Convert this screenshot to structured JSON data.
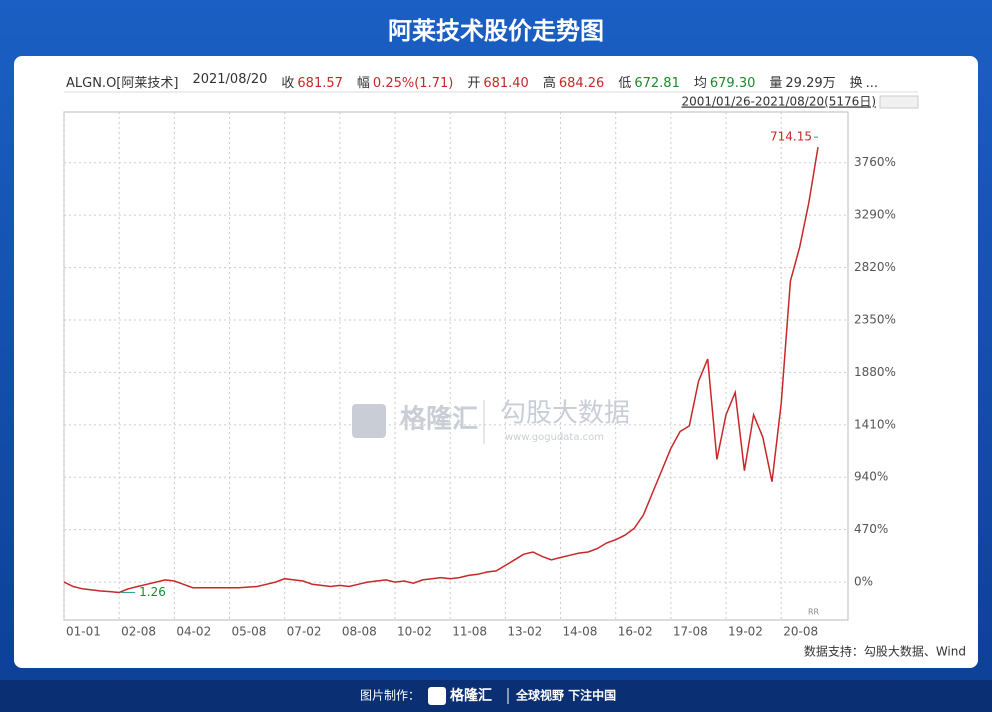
{
  "chart_data": {
    "type": "line",
    "title": "阿莱技术股价走势图",
    "info_symbol": "ALGN.O[阿莱技术]",
    "info_date": "2021/08/20",
    "info": [
      {
        "label": "收",
        "value": "681.57"
      },
      {
        "label": "幅",
        "value": "0.25%(1.71)"
      },
      {
        "label": "开",
        "value": "681.40"
      },
      {
        "label": "高",
        "value": "684.26"
      },
      {
        "label": "低",
        "value": "672.81"
      },
      {
        "label": "均",
        "value": "679.30"
      },
      {
        "label": "量",
        "value": "29.29万"
      },
      {
        "label": "换",
        "value": "..."
      }
    ],
    "range_label": "2001/01/26-2021/08/20(5176日)",
    "categories": [
      "01-01",
      null,
      null,
      null,
      null,
      null,
      "02-08",
      null,
      null,
      null,
      null,
      null,
      "04-02",
      null,
      null,
      null,
      null,
      null,
      "05-08",
      null,
      null,
      null,
      null,
      null,
      "07-02",
      null,
      null,
      null,
      null,
      null,
      "08-08",
      null,
      null,
      null,
      null,
      null,
      "10-02",
      null,
      null,
      null,
      null,
      null,
      "11-08",
      null,
      null,
      null,
      null,
      null,
      "13-02",
      null,
      null,
      null,
      null,
      null,
      "14-08",
      null,
      null,
      null,
      null,
      null,
      "16-02",
      null,
      null,
      null,
      null,
      null,
      "17-08",
      null,
      null,
      null,
      null,
      null,
      "19-02",
      null,
      null,
      null,
      null,
      null,
      "20-08",
      null,
      null,
      null,
      null
    ],
    "values": [
      0,
      -40,
      -60,
      -70,
      -80,
      -85,
      -93,
      -60,
      -40,
      -20,
      0,
      20,
      10,
      -20,
      -50,
      -50,
      -50,
      -50,
      -50,
      -50,
      -45,
      -40,
      -20,
      0,
      30,
      20,
      10,
      -20,
      -30,
      -40,
      -30,
      -40,
      -20,
      0,
      10,
      20,
      0,
      10,
      -10,
      20,
      30,
      40,
      30,
      40,
      60,
      70,
      90,
      100,
      150,
      200,
      250,
      270,
      230,
      200,
      220,
      240,
      260,
      270,
      300,
      350,
      380,
      420,
      480,
      600,
      800,
      1000,
      1200,
      1350,
      1400,
      1800,
      2000,
      1100,
      1500,
      1700,
      1000,
      1500,
      1300,
      900,
      1600,
      2700,
      3000,
      3400,
      3900
    ],
    "color": "#c62828",
    "ylim": [
      -340,
      4215
    ],
    "yticks": [
      {
        "value": 0,
        "label": "0%"
      },
      {
        "value": 470,
        "label": "470%"
      },
      {
        "value": 940,
        "label": "940%"
      },
      {
        "value": 1410,
        "label": "1410%"
      },
      {
        "value": 1880,
        "label": "1880%"
      },
      {
        "value": 2350,
        "label": "2350%"
      },
      {
        "value": 2820,
        "label": "2820%"
      },
      {
        "value": 3290,
        "label": "3290%"
      },
      {
        "value": 3760,
        "label": "3760%"
      }
    ],
    "grid": true,
    "annotation_high": "714.15",
    "annotation_low": "1.26",
    "corner_mark": "RR",
    "source": "数据支持：勾股大数据、Wind",
    "watermark": [
      "格隆汇",
      "勾股大数据",
      "www.gogudata.com"
    ]
  },
  "footer": {
    "made_by": "图片制作：",
    "brand": "格隆汇",
    "slogan": "全球视野 下注中国"
  }
}
